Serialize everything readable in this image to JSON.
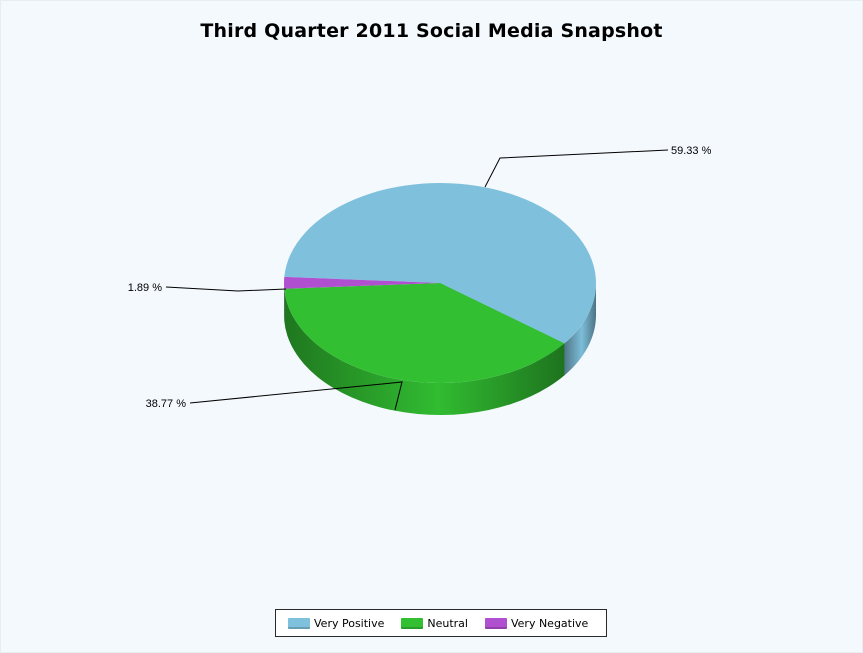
{
  "chart_data": {
    "type": "pie",
    "title": "Third Quarter 2011 Social Media Snapshot",
    "slices": [
      {
        "name": "Very Positive",
        "value": 59.33,
        "label": "59.33 %",
        "color": "#7fc1dc"
      },
      {
        "name": "Neutral",
        "value": 38.77,
        "label": "38.77 %",
        "color": "#32c032"
      },
      {
        "name": "Very Negative",
        "value": 1.89,
        "label": "1.89 %",
        "color": "#b04fd0"
      }
    ],
    "legend_position": "bottom",
    "style": "3d"
  }
}
